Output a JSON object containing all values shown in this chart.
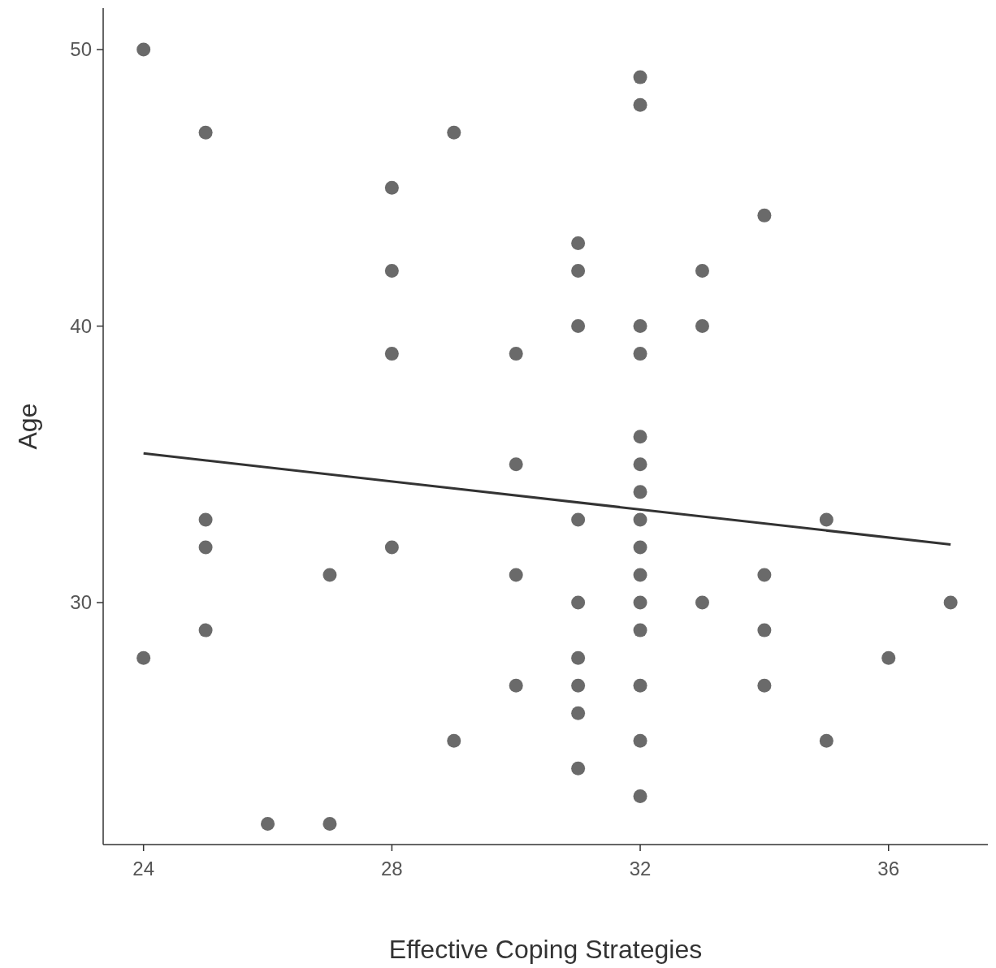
{
  "chart_data": {
    "type": "scatter",
    "xlabel": "Effective Coping Strategies",
    "ylabel": "Age",
    "xlim": [
      23.35,
      37.6
    ],
    "ylim": [
      21.25,
      51.5
    ],
    "xticks": [
      24,
      28,
      32,
      36
    ],
    "yticks": [
      30,
      40,
      50
    ],
    "grid": false,
    "marker": "circle",
    "series": [
      {
        "type": "scatter",
        "color": "#505050",
        "x": [
          24,
          24,
          25,
          25,
          25,
          25,
          26,
          27,
          27,
          28,
          28,
          28,
          28,
          29,
          29,
          30,
          30,
          30,
          30,
          31,
          31,
          31,
          31,
          31,
          31,
          31,
          31,
          31,
          32,
          32,
          32,
          32,
          32,
          32,
          32,
          32,
          32,
          32,
          32,
          32,
          32,
          32,
          32,
          33,
          33,
          33,
          34,
          34,
          34,
          34,
          35,
          35,
          36,
          37
        ],
        "values": [
          50,
          28,
          47,
          33,
          32,
          29,
          22,
          31,
          22,
          45,
          42,
          39,
          32,
          47,
          25,
          39,
          35,
          31,
          27,
          43,
          42,
          40,
          33,
          30,
          28,
          27,
          26,
          24,
          49,
          48,
          40,
          39,
          36,
          35,
          34,
          33,
          32,
          31,
          30,
          29,
          27,
          25,
          23,
          42,
          40,
          30,
          44,
          31,
          29,
          27,
          33,
          25,
          28,
          30
        ]
      },
      {
        "type": "line",
        "color": "#333333",
        "x": [
          24,
          37
        ],
        "values": [
          35.4,
          32.1
        ],
        "marker": "none"
      }
    ]
  }
}
